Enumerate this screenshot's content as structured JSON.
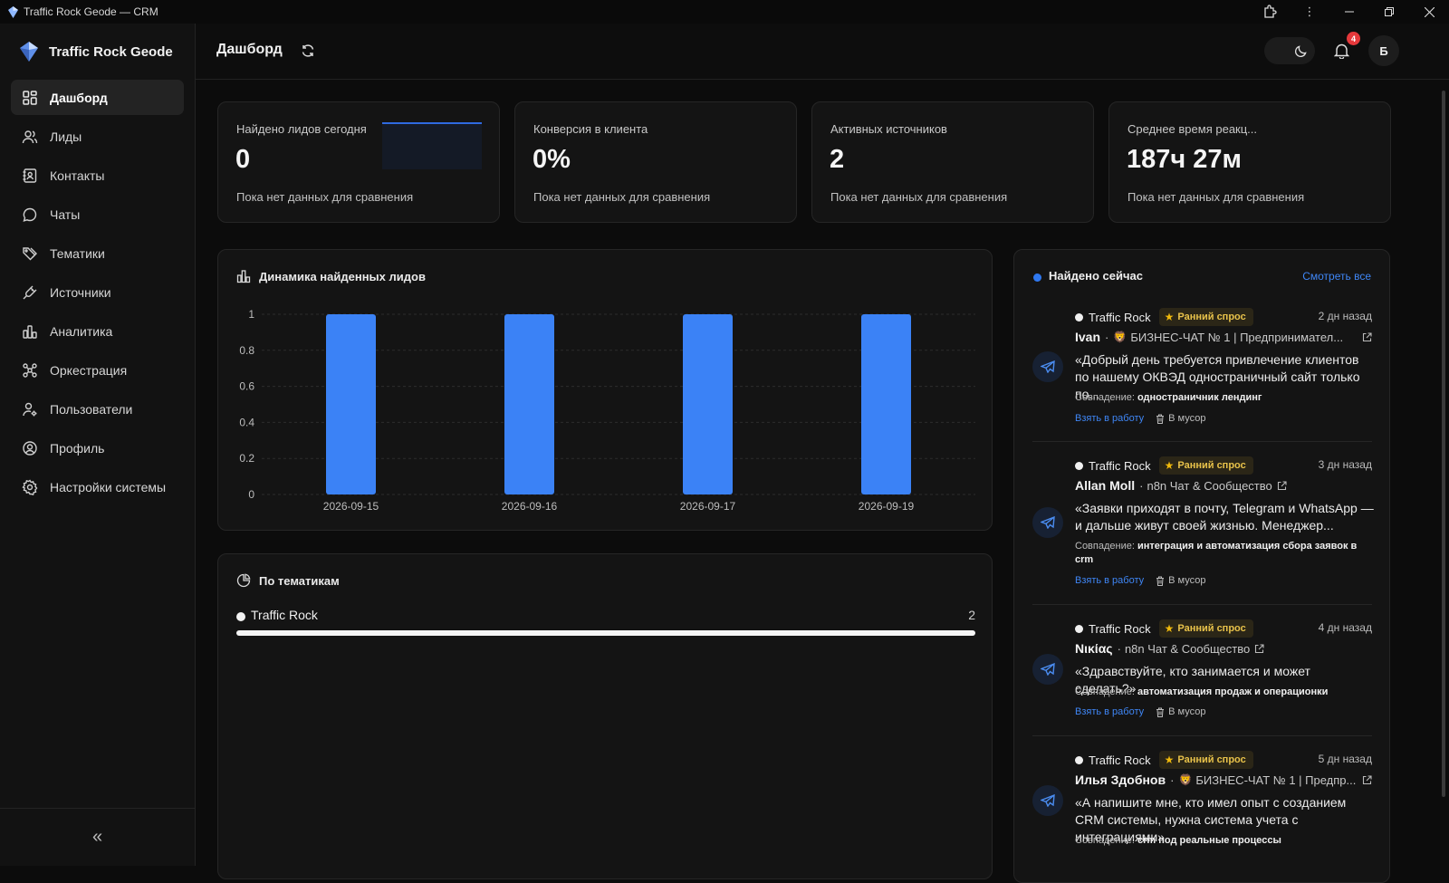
{
  "window": {
    "title": "Traffic Rock Geode — CRM"
  },
  "brand": {
    "name": "Traffic Rock Geode"
  },
  "sidebar": {
    "items": [
      {
        "label": "Дашборд",
        "icon": "grid-icon",
        "active": true
      },
      {
        "label": "Лиды",
        "icon": "users-icon"
      },
      {
        "label": "Контакты",
        "icon": "contacts-icon"
      },
      {
        "label": "Чаты",
        "icon": "chat-icon"
      },
      {
        "label": "Тематики",
        "icon": "tag-icon"
      },
      {
        "label": "Источники",
        "icon": "plug-icon"
      },
      {
        "label": "Аналитика",
        "icon": "bar-chart-icon"
      },
      {
        "label": "Оркестрация",
        "icon": "workflow-icon"
      },
      {
        "label": "Пользователи",
        "icon": "user-settings-icon"
      },
      {
        "label": "Профиль",
        "icon": "profile-icon"
      },
      {
        "label": "Настройки системы",
        "icon": "gear-icon"
      }
    ],
    "collapse_label": "«"
  },
  "header": {
    "title": "Дашборд",
    "notifications_count": "4",
    "avatar_letter": "Б"
  },
  "kpis": [
    {
      "label": "Найдено лидов сегодня",
      "value": "0",
      "sub": "Пока нет данных для сравнения"
    },
    {
      "label": "Конверсия в клиента",
      "value": "0%",
      "sub": "Пока нет данных для сравнения"
    },
    {
      "label": "Активных источников",
      "value": "2",
      "sub": "Пока нет данных для сравнения"
    },
    {
      "label": "Среднее время реакц...",
      "value": "187ч 27м",
      "sub": "Пока нет данных для сравнения"
    }
  ],
  "dynamics": {
    "title": "Динамика найденных лидов"
  },
  "chart_data": {
    "type": "bar",
    "title": "Динамика найденных лидов",
    "categories": [
      "2026-09-15",
      "2026-09-16",
      "2026-09-17",
      "2026-09-19"
    ],
    "values": [
      1,
      1,
      1,
      1
    ],
    "yticks": [
      "0",
      "0.2",
      "0.4",
      "0.6",
      "0.8",
      "1"
    ],
    "ylim": [
      0,
      1
    ],
    "grid": true,
    "color": "#3b82f6"
  },
  "topics": {
    "title": "По тематикам",
    "items": [
      {
        "name": "Traffic Rock",
        "count": "2",
        "share": 1.0
      }
    ]
  },
  "feed": {
    "title": "Найдено сейчас",
    "view_all": "Смотреть все",
    "match_prefix": "Совпадение:",
    "take_label": "Взять в работу",
    "trash_label": "В мусор",
    "leads": [
      {
        "source": "Traffic Rock",
        "tag": "Ранний спрос",
        "time": "2 дн назад",
        "author": "Ivan",
        "chat_icon": "🦁",
        "chat": "БИЗНЕС-ЧАТ № 1 | Предпринимател...",
        "text": "«Добрый день требуется привлечение клиентов по нашему ОКВЭД одностраничный сайт только по...",
        "match": "одностраничник лендинг"
      },
      {
        "source": "Traffic Rock",
        "tag": "Ранний спрос",
        "time": "3 дн назад",
        "author": "Allan Moll",
        "chat_icon": "",
        "chat": "n8n Чат & Сообщество",
        "text": "«Заявки приходят в почту, Telegram и WhatsApp — и дальше живут своей жизнью. Менеджер...",
        "match": "интеграция и автоматизация сбора заявок в crm"
      },
      {
        "source": "Traffic Rock",
        "tag": "Ранний спрос",
        "time": "4 дн назад",
        "author": "Νικίας",
        "chat_icon": "",
        "chat": "n8n Чат & Сообщество",
        "text": "«Здравствуйте, кто занимается и может сделать?»",
        "match": "автоматизация продаж и операционки"
      },
      {
        "source": "Traffic Rock",
        "tag": "Ранний спрос",
        "time": "5 дн назад",
        "author": "Илья Здобнов",
        "chat_icon": "🦁",
        "chat": "БИЗНЕС-ЧАТ № 1 | Предпр...",
        "text": "«А напишите мне, кто имел опыт с созданием CRM системы, нужна система учета с интеграциями»",
        "match": "crm под реальные процессы"
      }
    ]
  }
}
